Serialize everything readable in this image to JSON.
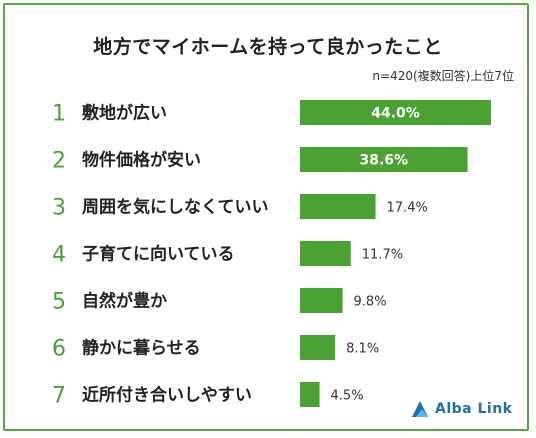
{
  "chart_data": {
    "type": "bar",
    "title": "地方でマイホームを持って良かったこと",
    "note": "n=420(複数回答)上位7位",
    "categories": [
      "敷地が広い",
      "物件価格が安い",
      "周囲を気にしなくていい",
      "子育てに向いている",
      "自然が豊か",
      "静かに暮らせる",
      "近所付き合いしやすい"
    ],
    "ranks": [
      "1",
      "2",
      "3",
      "4",
      "5",
      "6",
      "7"
    ],
    "values": [
      44.0,
      38.6,
      17.4,
      11.7,
      9.8,
      8.1,
      4.5
    ],
    "value_labels": [
      "44.0%",
      "38.6%",
      "17.4%",
      "11.7%",
      "9.8%",
      "8.1%",
      "4.5%"
    ],
    "xlim": [
      0,
      44.0
    ],
    "bar_color": "#4aa233",
    "grid": false,
    "legend": "none"
  },
  "brand": {
    "name": "Alba Link",
    "color": "#1e6fb5",
    "icon": "alba-link-logo-icon"
  }
}
